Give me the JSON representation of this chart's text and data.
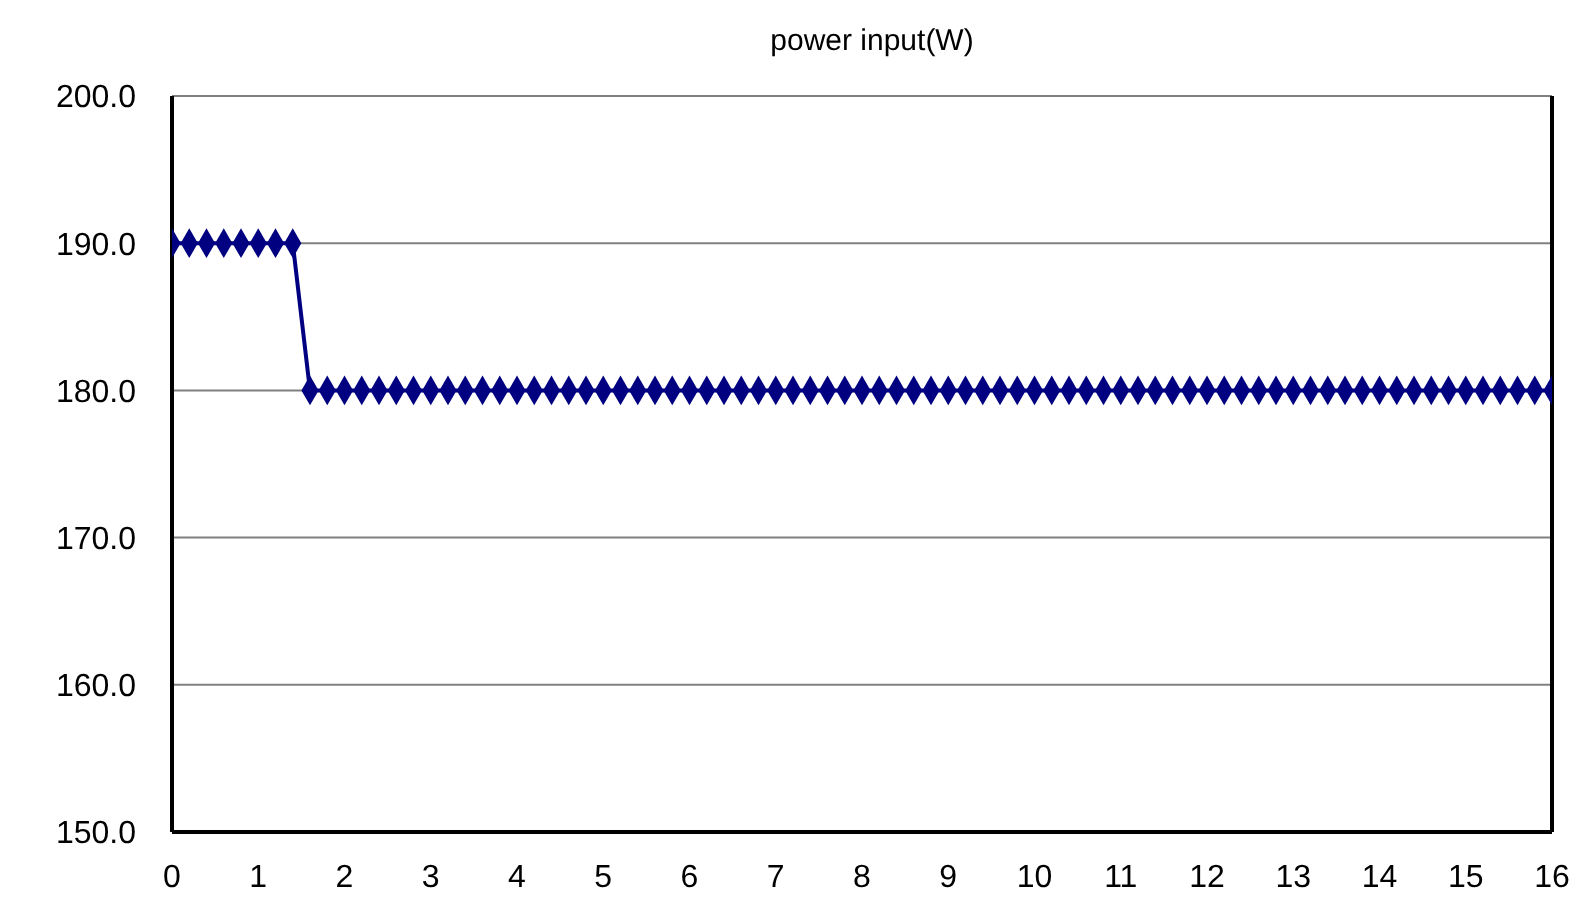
{
  "chart_data": {
    "type": "line",
    "title": "power input(W)",
    "series": [
      {
        "color": "#000080",
        "x": [
          0,
          0.2,
          0.4,
          0.6,
          0.8,
          1,
          1.2,
          1.4,
          1.6,
          1.8,
          2,
          2.2,
          2.4,
          2.6,
          2.8,
          3,
          3.2,
          3.4,
          3.6,
          3.8,
          4,
          4.2,
          4.4,
          4.6,
          4.8,
          5,
          5.2,
          5.4,
          5.6,
          5.8,
          6,
          6.2,
          6.4,
          6.6,
          6.8,
          7,
          7.2,
          7.4,
          7.6,
          7.8,
          8,
          8.2,
          8.4,
          8.6,
          8.8,
          9,
          9.2,
          9.4,
          9.6,
          9.8,
          10,
          10.2,
          10.4,
          10.6,
          10.8,
          11,
          11.2,
          11.4,
          11.6,
          11.8,
          12,
          12.2,
          12.4,
          12.6,
          12.8,
          13,
          13.2,
          13.4,
          13.6,
          13.8,
          14,
          14.2,
          14.4,
          14.6,
          14.8,
          15,
          15.2,
          15.4,
          15.6,
          15.8,
          16
        ],
        "values": [
          190,
          190,
          190,
          190,
          190,
          190,
          190,
          190,
          180,
          180,
          180,
          180,
          180,
          180,
          180,
          180,
          180,
          180,
          180,
          180,
          180,
          180,
          180,
          180,
          180,
          180,
          180,
          180,
          180,
          180,
          180,
          180,
          180,
          180,
          180,
          180,
          180,
          180,
          180,
          180,
          180,
          180,
          180,
          180,
          180,
          180,
          180,
          180,
          180,
          180,
          180,
          180,
          180,
          180,
          180,
          180,
          180,
          180,
          180,
          180,
          180,
          180,
          180,
          180,
          180,
          180,
          180,
          180,
          180,
          180,
          180,
          180,
          180,
          180,
          180,
          180,
          180,
          180,
          180,
          180,
          180
        ]
      }
    ],
    "xlim": [
      0,
      16
    ],
    "xticks": [
      0,
      1,
      2,
      3,
      4,
      5,
      6,
      7,
      8,
      9,
      10,
      11,
      12,
      13,
      14,
      15,
      16
    ],
    "ylim": [
      150,
      200
    ],
    "yticks": [
      {
        "value": 150,
        "label": "150.0"
      },
      {
        "value": 160,
        "label": "160.0"
      },
      {
        "value": 170,
        "label": "170.0"
      },
      {
        "value": 180,
        "label": "180.0"
      },
      {
        "value": 190,
        "label": "190.0"
      },
      {
        "value": 200,
        "label": "200.0"
      }
    ],
    "grid": "y",
    "marker": "diamond",
    "line_style": "solid"
  }
}
